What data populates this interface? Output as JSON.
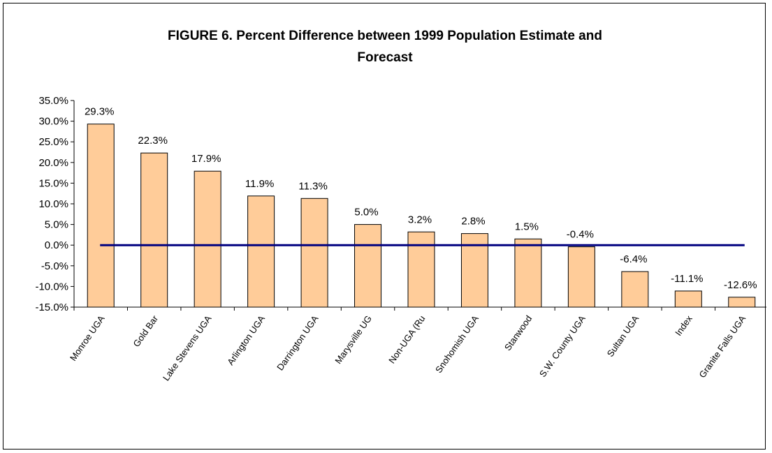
{
  "chart_data": {
    "type": "bar",
    "title_lines": [
      "FIGURE 6. Percent Difference between 1999 Population Estimate and",
      "Forecast"
    ],
    "categories": [
      "Monroe UGA",
      "Gold Bar",
      "Lake Stevens UGA",
      "Arlington UGA",
      "Darrington UGA",
      "Marysville UG",
      "Non-UGA (Ru",
      "Snohomish UGA",
      "Stanwood",
      "S.W. County UGA",
      "Sultan UGA",
      "Index",
      "Granite Falls UGA"
    ],
    "values": [
      29.3,
      22.3,
      17.9,
      11.9,
      11.3,
      5.0,
      3.2,
      2.8,
      1.5,
      -0.4,
      -6.4,
      -11.1,
      -12.6
    ],
    "data_labels": [
      "29.3%",
      "22.3%",
      "17.9%",
      "11.9%",
      "11.3%",
      "5.0%",
      "3.2%",
      "2.8%",
      "1.5%",
      "-0.4%",
      "-6.4%",
      "-11.1%",
      "-12.6%"
    ],
    "ylim": [
      -15,
      35
    ],
    "yticks": [
      -15,
      -10,
      -5,
      0,
      5,
      10,
      15,
      20,
      25,
      30,
      35
    ],
    "ytick_labels": [
      "-15.0%",
      "-10.0%",
      "-5.0%",
      "0.0%",
      "5.0%",
      "10.0%",
      "15.0%",
      "20.0%",
      "25.0%",
      "30.0%",
      "35.0%"
    ],
    "reference_line": 0,
    "bar_color": "#ffcc99",
    "bar_edge_color": "#000000",
    "reference_line_color": "#000080",
    "grid": false,
    "legend": "none"
  }
}
